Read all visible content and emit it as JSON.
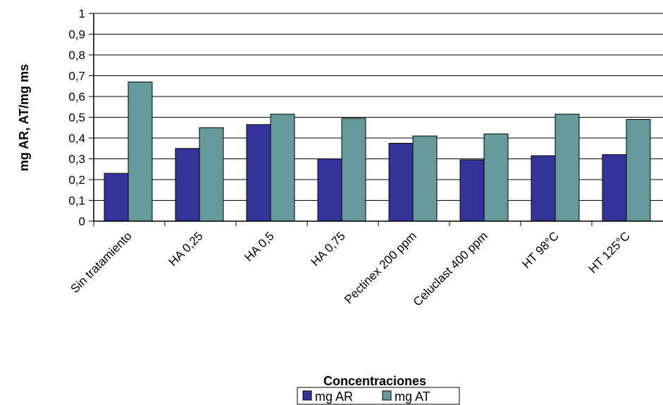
{
  "chart_data": {
    "type": "bar",
    "xlabel": "Concentraciones",
    "ylabel": "mg AR, AT/mg ms",
    "categories": [
      "Sin tratamiento",
      "HA 0,25",
      "HA 0,5",
      "HA 0,75",
      "Pectinex 200 ppm",
      "Celuclast 400 ppm",
      "HT 98°C",
      "HT 125°C"
    ],
    "series": [
      {
        "name": "mg AR",
        "color": "#333399",
        "values": [
          0.23,
          0.35,
          0.465,
          0.3,
          0.375,
          0.295,
          0.315,
          0.32
        ]
      },
      {
        "name": "mg AT",
        "color": "#669999",
        "values": [
          0.67,
          0.45,
          0.515,
          0.495,
          0.41,
          0.42,
          0.515,
          0.49
        ]
      }
    ],
    "ylim": [
      0,
      1
    ],
    "yticks": [
      "0",
      "0,1",
      "0,2",
      "0,3",
      "0,4",
      "0,5",
      "0,6",
      "0,7",
      "0,8",
      "0,9",
      "1"
    ],
    "grid": true,
    "legend_position": "bottom"
  }
}
